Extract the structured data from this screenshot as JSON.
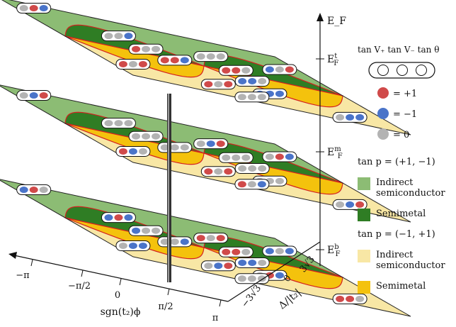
{
  "axes": {
    "energy_label": "E_F",
    "layer_labels": [
      {
        "base": "E",
        "sub": "F",
        "sup": "t"
      },
      {
        "base": "E",
        "sub": "F",
        "sup": "m"
      },
      {
        "base": "E",
        "sub": "F",
        "sup": "b"
      }
    ],
    "phi_label": "sgn(t₂)ϕ",
    "phi_ticks": [
      "−π",
      "−π/2",
      "0",
      "π/2",
      "π"
    ],
    "delta_label": "Δ/|t₂|",
    "delta_ticks": [
      "−3√3",
      "0",
      "3√3"
    ]
  },
  "legend": {
    "header": [
      "tan V₊",
      "tan V₋",
      "tan θ"
    ],
    "dots": [
      {
        "color": "#d04a4a",
        "label": "= +1"
      },
      {
        "color": "#4a74c9",
        "label": "= −1"
      },
      {
        "color": "#b3b3b3",
        "label": "= 0"
      }
    ],
    "group1_title": "tan p = (+1, −1)",
    "group1_items": [
      {
        "color": "#8cbc74",
        "label": [
          "Indirect",
          "semiconductor"
        ]
      },
      {
        "color": "#2f7d24",
        "label": [
          "Semimetal"
        ]
      }
    ],
    "group2_title": "tan p = (−1, +1)",
    "group2_items": [
      {
        "color": "#f8e7a5",
        "label": [
          "Indirect",
          "semiconductor"
        ]
      },
      {
        "color": "#f4c20d",
        "label": [
          "Semimetal"
        ]
      }
    ]
  },
  "colors": {
    "green_light": "#8cbc74",
    "green_dark": "#2f7d24",
    "yellow_light": "#f8e7a5",
    "yellow_dark": "#f4c20d",
    "boundary": "#d42020",
    "red": "#d04a4a",
    "blue": "#4a74c9",
    "gray": "#b3b3b3"
  },
  "layers": [
    {
      "name": "top",
      "ef": "t",
      "badges": [
        {
          "u": -0.8,
          "v": 0.87,
          "dots": [
            "gray",
            "red",
            "blue"
          ]
        },
        {
          "u": -0.38,
          "v": 0.48,
          "dots": [
            "gray",
            "gray",
            "blue"
          ]
        },
        {
          "u": -0.33,
          "v": 0.18,
          "dots": [
            "red",
            "gray",
            "gray"
          ]
        },
        {
          "u": -0.22,
          "v": -0.02,
          "dots": [
            "red",
            "red",
            "blue"
          ]
        },
        {
          "u": -0.78,
          "v": -0.55,
          "dots": [
            "red",
            "gray",
            "red"
          ]
        },
        {
          "u": -0.2,
          "v": -0.62,
          "dots": [
            "red",
            "gray",
            "red"
          ]
        },
        {
          "u": 0.27,
          "v": 0.45,
          "dots": [
            "gray",
            "gray",
            "gray"
          ]
        },
        {
          "u": 0.28,
          "v": 0.1,
          "dots": [
            "red",
            "red",
            "gray"
          ]
        },
        {
          "u": 0.25,
          "v": -0.2,
          "dots": [
            "blue",
            "blue",
            "gray"
          ]
        },
        {
          "u": 0.2,
          "v": -0.56,
          "dots": [
            "blue",
            "blue",
            "blue"
          ]
        },
        {
          "u": 0.8,
          "v": 0.52,
          "dots": [
            "blue",
            "gray",
            "red"
          ]
        },
        {
          "u": 0.65,
          "v": -0.82,
          "dots": [
            "gray",
            "blue",
            "blue"
          ]
        },
        {
          "u": -0.07,
          "v": -0.85,
          "dots": [
            "gray",
            "gray",
            "gray"
          ]
        }
      ]
    },
    {
      "name": "middle",
      "ef": "m",
      "badges": [
        {
          "u": -0.8,
          "v": 0.87,
          "dots": [
            "gray",
            "blue",
            "red"
          ]
        },
        {
          "u": -0.38,
          "v": 0.48,
          "dots": [
            "gray",
            "gray",
            "gray"
          ]
        },
        {
          "u": -0.33,
          "v": 0.18,
          "dots": [
            "gray",
            "gray",
            "gray"
          ]
        },
        {
          "u": -0.22,
          "v": -0.02,
          "dots": [
            "gray",
            "gray",
            "gray"
          ]
        },
        {
          "u": -0.78,
          "v": -0.55,
          "dots": [
            "red",
            "blue",
            "gray"
          ]
        },
        {
          "u": -0.2,
          "v": -0.62,
          "dots": [
            "red",
            "gray",
            "red"
          ]
        },
        {
          "u": 0.27,
          "v": 0.45,
          "dots": [
            "gray",
            "blue",
            "red"
          ]
        },
        {
          "u": 0.28,
          "v": 0.1,
          "dots": [
            "gray",
            "gray",
            "gray"
          ]
        },
        {
          "u": 0.25,
          "v": -0.2,
          "dots": [
            "gray",
            "gray",
            "gray"
          ]
        },
        {
          "u": 0.2,
          "v": -0.56,
          "dots": [
            "gray",
            "gray",
            "gray"
          ]
        },
        {
          "u": 0.8,
          "v": 0.52,
          "dots": [
            "gray",
            "red",
            "blue"
          ]
        },
        {
          "u": 0.65,
          "v": -0.82,
          "dots": [
            "gray",
            "blue",
            "red"
          ]
        },
        {
          "u": -0.07,
          "v": -0.85,
          "dots": [
            "red",
            "gray",
            "blue"
          ]
        }
      ]
    },
    {
      "name": "bottom",
      "ef": "b",
      "badges": [
        {
          "u": -0.8,
          "v": 0.87,
          "dots": [
            "blue",
            "red",
            "gray"
          ]
        },
        {
          "u": -0.38,
          "v": 0.48,
          "dots": [
            "blue",
            "red",
            "blue"
          ]
        },
        {
          "u": -0.33,
          "v": 0.18,
          "dots": [
            "blue",
            "gray",
            "gray"
          ]
        },
        {
          "u": -0.22,
          "v": -0.02,
          "dots": [
            "gray",
            "gray",
            "blue"
          ]
        },
        {
          "u": -0.78,
          "v": -0.55,
          "dots": [
            "gray",
            "blue",
            "blue"
          ]
        },
        {
          "u": -0.2,
          "v": -0.62,
          "dots": [
            "gray",
            "blue",
            "red"
          ]
        },
        {
          "u": 0.27,
          "v": 0.45,
          "dots": [
            "red",
            "gray",
            "red"
          ]
        },
        {
          "u": 0.28,
          "v": 0.1,
          "dots": [
            "red",
            "red",
            "gray"
          ]
        },
        {
          "u": 0.25,
          "v": -0.2,
          "dots": [
            "blue",
            "blue",
            "gray"
          ]
        },
        {
          "u": 0.2,
          "v": -0.56,
          "dots": [
            "gray",
            "red",
            "blue"
          ]
        },
        {
          "u": 0.8,
          "v": 0.52,
          "dots": [
            "blue",
            "gray",
            "blue"
          ]
        },
        {
          "u": 0.65,
          "v": -0.82,
          "dots": [
            "red",
            "red",
            "gray"
          ]
        },
        {
          "u": -0.07,
          "v": -0.85,
          "dots": [
            "gray",
            "gray",
            "gray"
          ]
        }
      ]
    }
  ]
}
